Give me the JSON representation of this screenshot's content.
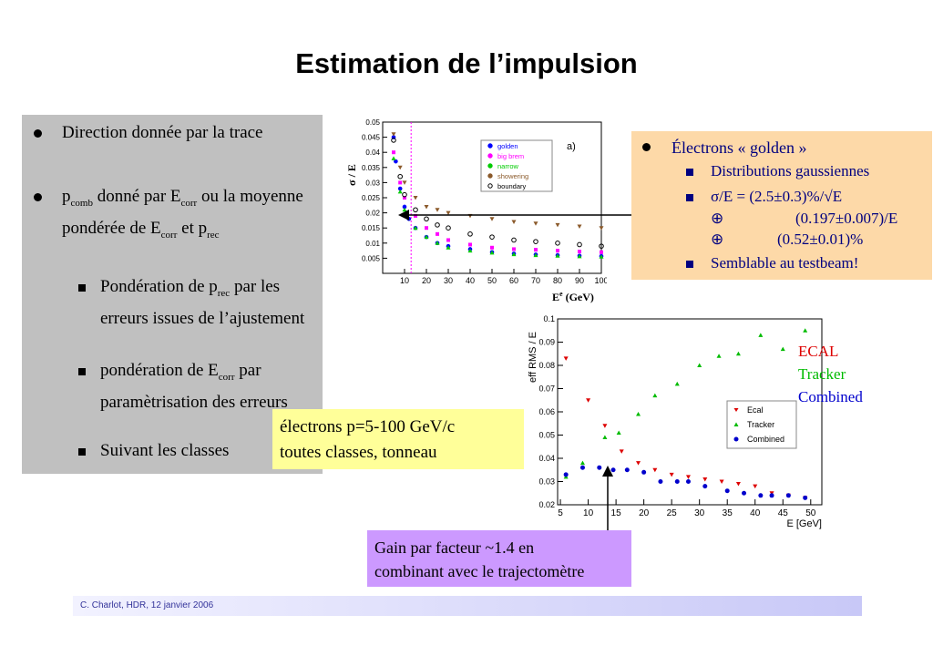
{
  "title": "Estimation de l’impulsion",
  "left": {
    "b1": "Direction donnée par la trace",
    "b2a": "p",
    "b2sub1": "comb",
    "b2b": " donné par E",
    "b2sub2": "corr",
    "b2c": " ou la moyenne pondérée de E",
    "b2sub3": "corr",
    "b2d": " et p",
    "b2sub4": "rec",
    "s1a": "Pondération de p",
    "s1sub": "rec",
    "s1b": " par les erreurs issues de l’ajustement",
    "s2a": "pondération de E",
    "s2sub": "corr",
    "s2b": " par paramètrisation des erreurs",
    "s3": "Suivant les classes"
  },
  "orange": {
    "b1": "Électrons « golden »",
    "s1": "Distributions gaussiennes",
    "s2a": "σ/E = (2.5±0.3)%/√E",
    "s2b": "⊕",
    "s2c": "(0.197±0.007)/E",
    "s2d": "⊕",
    "s2e": "(0.52±0.01)%",
    "s3": "Semblable au testbeam!"
  },
  "yellow": {
    "line1": "électrons p=5-100 GeV/c",
    "line2": "toutes classes, tonneau"
  },
  "purple": {
    "line1": "Gain par facteur ~1.4 en",
    "line2": "combinant avec le trajectomètre"
  },
  "right_legend": {
    "ecal": "ECAL",
    "tracker": "Tracker",
    "combined": "Combined"
  },
  "footer": "C. Charlot, HDR, 12 janvier 2006",
  "colors": {
    "ecal": "#dd0000",
    "tracker": "#00bb00",
    "combined": "#0000cc",
    "golden": "#0000ff",
    "bigbrem": "#ff00ff",
    "narrow": "#00cc00",
    "showering": "#8b5a2b"
  },
  "chart_data": [
    {
      "type": "scatter",
      "panel_label": "a)",
      "xlabel": "E",
      "xlabel_sup": "e",
      "xlabel_unit": "(GeV)",
      "ylabel": "σ / E",
      "xlim": [
        0,
        100
      ],
      "ylim": [
        0,
        0.05
      ],
      "xticks": [
        "10",
        "20",
        "30",
        "40",
        "50",
        "60",
        "70",
        "80",
        "90",
        "100"
      ],
      "yticks": [
        "0.005",
        "0.01",
        "0.015",
        "0.02",
        "0.025",
        "0.03",
        "0.035",
        "0.04",
        "0.045",
        "0.05"
      ],
      "legend": [
        "golden",
        "big brem",
        "narrow",
        "showering",
        "boundary"
      ],
      "series": [
        {
          "name": "golden",
          "x": [
            5,
            6,
            8,
            10,
            12,
            15,
            20,
            25,
            30,
            40,
            50,
            60,
            70,
            80,
            90,
            100
          ],
          "y": [
            0.045,
            0.037,
            0.028,
            0.022,
            0.018,
            0.015,
            0.012,
            0.01,
            0.009,
            0.008,
            0.007,
            0.0065,
            0.0062,
            0.006,
            0.0058,
            0.0057
          ]
        },
        {
          "name": "big brem",
          "x": [
            5,
            8,
            10,
            15,
            20,
            25,
            30,
            40,
            50,
            60,
            70,
            80,
            90,
            100
          ],
          "y": [
            0.04,
            0.03,
            0.025,
            0.019,
            0.015,
            0.013,
            0.011,
            0.0095,
            0.0085,
            0.008,
            0.0078,
            0.0075,
            0.0072,
            0.007
          ]
        },
        {
          "name": "narrow",
          "x": [
            5,
            8,
            10,
            15,
            20,
            25,
            30,
            40,
            50,
            60,
            70,
            80,
            90,
            100
          ],
          "y": [
            0.038,
            0.027,
            0.021,
            0.015,
            0.012,
            0.01,
            0.0085,
            0.0075,
            0.0068,
            0.0063,
            0.006,
            0.0058,
            0.0056,
            0.0055
          ]
        },
        {
          "name": "showering",
          "x": [
            5,
            8,
            10,
            15,
            20,
            25,
            30,
            40,
            50,
            60,
            70,
            80,
            90,
            100
          ],
          "y": [
            0.046,
            0.035,
            0.03,
            0.025,
            0.022,
            0.021,
            0.02,
            0.019,
            0.018,
            0.017,
            0.0165,
            0.016,
            0.0155,
            0.015
          ]
        },
        {
          "name": "boundary",
          "x": [
            5,
            8,
            10,
            15,
            20,
            25,
            30,
            40,
            50,
            60,
            70,
            80,
            90,
            100
          ],
          "y": [
            0.044,
            0.032,
            0.026,
            0.021,
            0.018,
            0.016,
            0.015,
            0.013,
            0.012,
            0.011,
            0.0105,
            0.01,
            0.0095,
            0.009
          ]
        }
      ]
    },
    {
      "type": "scatter",
      "ylabel": "eff RMS / E",
      "xlabel": "E [GeV]",
      "xlim": [
        4.5,
        52
      ],
      "ylim": [
        0.02,
        0.1
      ],
      "xticks": [
        "5",
        "10",
        "15",
        "20",
        "25",
        "30",
        "35",
        "40",
        "45",
        "50"
      ],
      "yticks": [
        "0.02",
        "0.03",
        "0.04",
        "0.05",
        "0.06",
        "0.07",
        "0.08",
        "0.09",
        "0.1"
      ],
      "legend": [
        "Ecal",
        "Tracker",
        "Combined"
      ],
      "series": [
        {
          "name": "Ecal",
          "x": [
            6,
            10,
            13,
            16,
            19,
            22,
            25,
            28,
            31,
            34,
            37,
            40,
            43,
            46,
            49
          ],
          "y": [
            0.083,
            0.065,
            0.054,
            0.043,
            0.038,
            0.035,
            0.033,
            0.032,
            0.031,
            0.03,
            0.029,
            0.028,
            0.025,
            0.024,
            0.023
          ]
        },
        {
          "name": "Tracker",
          "x": [
            6,
            9,
            13,
            15.5,
            19,
            22,
            26,
            30,
            33.5,
            37,
            41,
            45,
            49
          ],
          "y": [
            0.032,
            0.038,
            0.049,
            0.051,
            0.059,
            0.067,
            0.072,
            0.08,
            0.084,
            0.085,
            0.093,
            0.087,
            0.095
          ]
        },
        {
          "name": "Combined",
          "x": [
            6,
            9,
            12,
            14.5,
            17,
            20,
            23,
            26,
            28,
            31,
            35,
            38,
            41,
            43,
            46,
            49
          ],
          "y": [
            0.033,
            0.036,
            0.036,
            0.035,
            0.035,
            0.034,
            0.03,
            0.03,
            0.03,
            0.028,
            0.026,
            0.025,
            0.024,
            0.024,
            0.024,
            0.023
          ]
        }
      ]
    }
  ]
}
